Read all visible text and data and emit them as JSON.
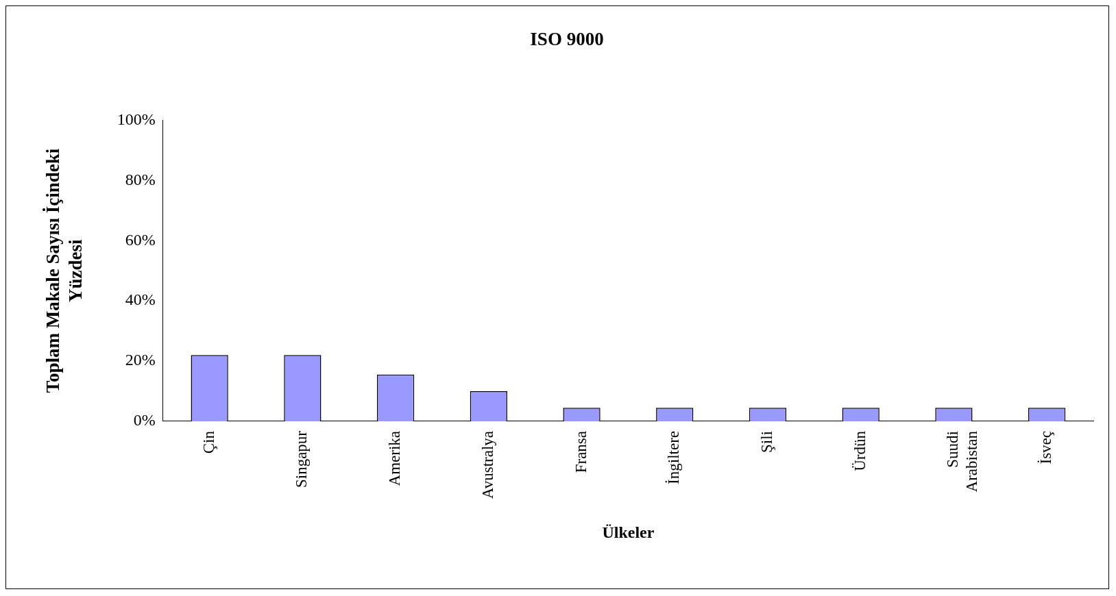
{
  "chart_data": {
    "type": "bar",
    "title": "ISO 9000",
    "xlabel": "Ülkeler",
    "ylabel": "Toplam Makale Sayısı İçindeki Yüzdesi",
    "categories": [
      "Çin",
      "Singapur",
      "Amerika",
      "Avustralya",
      "Fransa",
      "İngiltere",
      "Şili",
      "Ürdün",
      "Suudi Arabistan",
      "İsveç"
    ],
    "values": [
      22,
      22,
      15.5,
      10,
      4.5,
      4.5,
      4.5,
      4.5,
      4.5,
      4.5
    ],
    "color": "#9999ff",
    "ylim": [
      0,
      100
    ],
    "yticks": [
      {
        "value": 0,
        "label": "0%"
      },
      {
        "value": 20,
        "label": "20%"
      },
      {
        "value": 40,
        "label": "40%"
      },
      {
        "value": 60,
        "label": "60%"
      },
      {
        "value": 80,
        "label": "80%"
      },
      {
        "value": 100,
        "label": "100%"
      }
    ],
    "grid": false,
    "legend": false
  }
}
